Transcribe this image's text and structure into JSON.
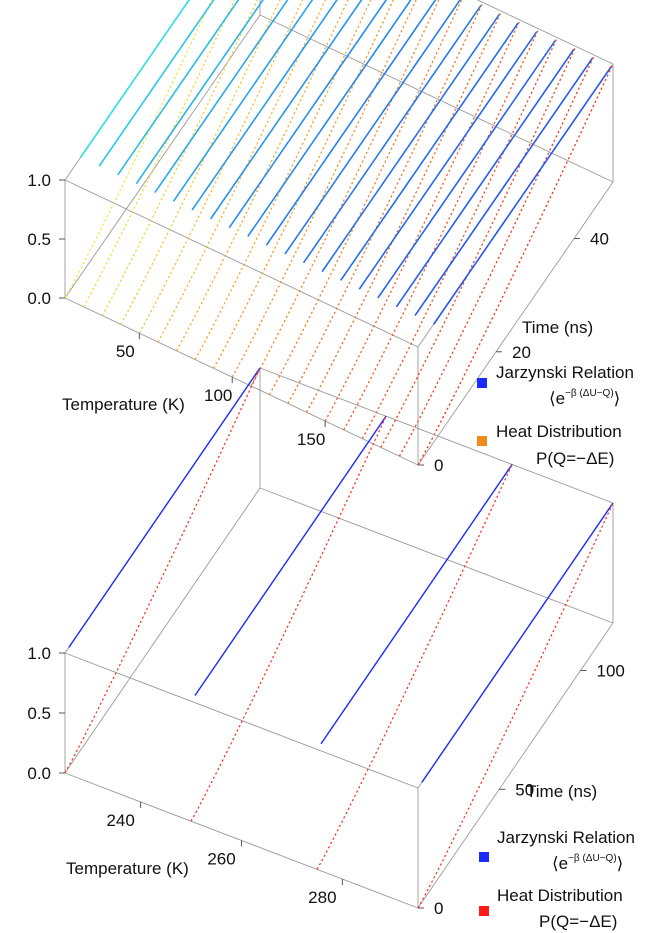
{
  "chart_data": [
    {
      "type": "line3d",
      "xlabel": "Temperature (K)",
      "ylabel": "Time (ns)",
      "zlabel": "",
      "xticks": [
        "50",
        "100",
        "150"
      ],
      "yticks": [
        "0",
        "20",
        "40"
      ],
      "zticks": [
        "0.0",
        "0.5",
        "1.0"
      ],
      "xlim": [
        10,
        200
      ],
      "ylim": [
        0,
        50
      ],
      "zlim": [
        0,
        1
      ],
      "temperatures": [
        10,
        20,
        30,
        40,
        50,
        60,
        70,
        80,
        90,
        100,
        110,
        120,
        130,
        140,
        150,
        160,
        170,
        180,
        190,
        200
      ],
      "series": [
        {
          "name": "Jarzynski Relation",
          "name_math": "⟨e",
          "name_math_sup": "−β (ΔU−Q)",
          "name_math_close": "⟩",
          "style": "solid",
          "color": "#1f3fff",
          "values": "≈1.0 at all times"
        },
        {
          "name": "Heat Distribution",
          "name_math": "P(Q=−ΔE)",
          "style": "dotted",
          "color": "#f08a1c",
          "values": "rises from 0.0 at t=0 to ≈1.0 at t=50"
        }
      ],
      "legend": [
        {
          "line1": "Jarzynski Relation",
          "line2_a": "⟨e",
          "line2_sup": "−β (ΔU−Q)",
          "line2_b": "⟩",
          "color": "#1a2bff"
        },
        {
          "line1": "Heat Distribution",
          "line2_a": "P(Q=−ΔE)",
          "line2_sup": "",
          "line2_b": "",
          "color": "#f08a1c"
        }
      ],
      "colors": {
        "cold_solid": "#29e0e0",
        "hot_solid": "#2455f5",
        "cold_dotted": "#f5e13a",
        "hot_dotted": "#f03a1c"
      }
    },
    {
      "type": "line3d",
      "xlabel": "Temperature (K)",
      "ylabel": "Time (ns)",
      "zlabel": "",
      "xticks": [
        "240",
        "260",
        "280"
      ],
      "yticks": [
        "0",
        "50",
        "100"
      ],
      "zticks": [
        "0.0",
        "0.5",
        "1.0"
      ],
      "xlim": [
        225,
        295
      ],
      "ylim": [
        0,
        120
      ],
      "zlim": [
        0,
        1
      ],
      "temperatures": [
        225,
        250,
        275,
        295
      ],
      "series": [
        {
          "name": "Jarzynski Relation",
          "style": "solid",
          "color": "#1a2bff",
          "values": "≈1.0 at all times"
        },
        {
          "name": "Heat Distribution",
          "style": "dotted",
          "color": "#ff2a1a",
          "values": "rises from 0.0 at t=0 to ≈1.0 at t=120"
        }
      ],
      "legend": [
        {
          "line1": "Jarzynski Relation",
          "line2_a": "⟨e",
          "line2_sup": "−β (ΔU−Q)",
          "line2_b": "⟩",
          "color": "#1a2bff"
        },
        {
          "line1": "Heat Distribution",
          "line2_a": "P(Q=−ΔE)",
          "line2_sup": "",
          "line2_b": "",
          "color": "#ff1a1a"
        }
      ],
      "colors": {
        "solid": "#1a2bff",
        "dotted": "#ff2a1a"
      }
    }
  ]
}
